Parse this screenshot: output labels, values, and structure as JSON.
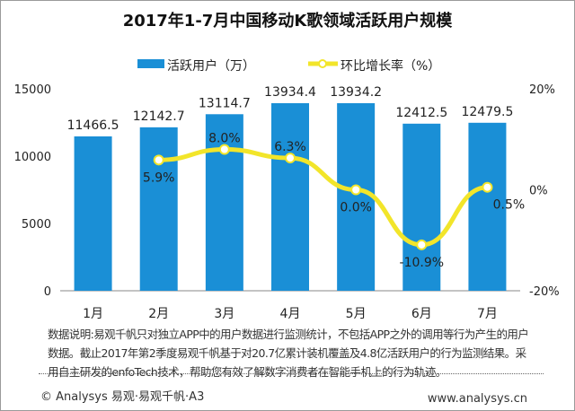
{
  "chart_data": {
    "type": "bar+line",
    "title": "2017年1-7月中国移动K歌领域活跃用户规模",
    "categories": [
      "1月",
      "2月",
      "3月",
      "4月",
      "5月",
      "6月",
      "7月"
    ],
    "series": [
      {
        "name": "活跃用户（万）",
        "type": "bar",
        "axis": "left",
        "color": "#1a8fd6",
        "values": [
          11466.5,
          12142.7,
          13114.7,
          13934.4,
          13934.2,
          12412.5,
          12479.5
        ],
        "labels": [
          "11466.5",
          "12142.7",
          "13114.7",
          "13934.4",
          "13934.2",
          "12412.5",
          "12479.5"
        ]
      },
      {
        "name": "环比增长率（%）",
        "type": "line",
        "axis": "right",
        "color": "#f2e52a",
        "values": [
          null,
          5.9,
          8.0,
          6.3,
          0.0,
          -10.9,
          0.5
        ],
        "labels": [
          "",
          "5.9%",
          "8.0%",
          "6.3%",
          "0.0%",
          "-10.9%",
          "0.5%"
        ]
      }
    ],
    "y_left": {
      "range": [
        0,
        15000
      ],
      "ticks": [
        "0",
        "5000",
        "10000",
        "15000"
      ]
    },
    "y_right": {
      "range": [
        -20,
        20
      ],
      "ticks": [
        "-20%",
        "0%",
        "20%"
      ]
    },
    "grid": false,
    "legend": "top"
  },
  "footer": {
    "note": "数据说明:易观千帆只对独立APP中的用户数据进行监测统计，不包括APP之外的调用等行为产生的用户数据。截止2017年第2季度易观千帆基于对20.7亿累计装机覆盖及4.8亿活跃用户的行为监测结果。采用自主研发的enfoTech技术，帮助您有效了解数字消费者在智能手机上的行为轨迹。",
    "copyright": "© Analysys 易观·易观千帆·A3",
    "website": "www.analysys.cn"
  }
}
